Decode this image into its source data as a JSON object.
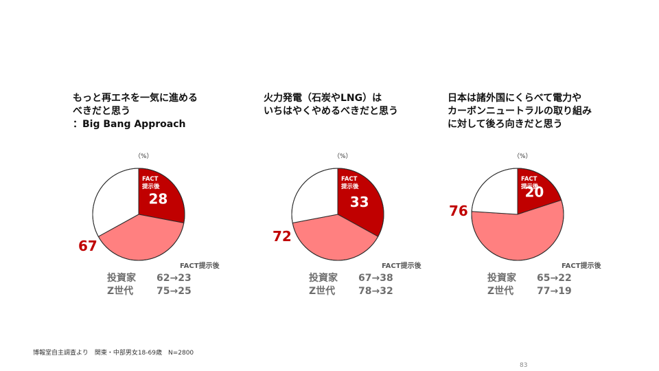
{
  "colors": {
    "fact": "#c00000",
    "other": "#ff8080",
    "rest": "#ffffff",
    "outline": "#2b2b2b",
    "accent_text": "#c00000",
    "muted_text": "#6e6e6e"
  },
  "chart_data": [
    {
      "type": "pie",
      "title": "もっと再エネを一気に進める\nべきだと思う\n：Big Bang Approach",
      "unit": "（%）",
      "slices": [
        {
          "label": "FACT\n提示後",
          "value": 28,
          "color": "#c00000"
        },
        {
          "label": "",
          "value": 39,
          "color": "#ff8080"
        },
        {
          "label": "",
          "value": 33,
          "color": "#ffffff"
        }
      ],
      "fact_value": "28",
      "fact_tag": [
        "FACT",
        "提示後"
      ],
      "outer_value": "67",
      "fact_header": "FACT提示後",
      "rows": [
        {
          "group": "投資家",
          "values": "62→23"
        },
        {
          "group": "Z世代",
          "values": "75→25"
        }
      ]
    },
    {
      "type": "pie",
      "title": "火力発電（石炭やLNG）は\nいちはやくやめるべきだと思う",
      "unit": "（%）",
      "slices": [
        {
          "label": "FACT\n提示後",
          "value": 33,
          "color": "#c00000"
        },
        {
          "label": "",
          "value": 39,
          "color": "#ff8080"
        },
        {
          "label": "",
          "value": 28,
          "color": "#ffffff"
        }
      ],
      "fact_value": "33",
      "fact_tag": [
        "FACT",
        "提示後"
      ],
      "outer_value": "72",
      "fact_header": "FACT提示後",
      "rows": [
        {
          "group": "投資家",
          "values": "67→38"
        },
        {
          "group": "Z世代",
          "values": "78→32"
        }
      ]
    },
    {
      "type": "pie",
      "title": "日本は諸外国にくらべて電力や\nカーボンニュートラルの取り組み\nに対して後ろ向きだと思う",
      "unit": "（%）",
      "slices": [
        {
          "label": "FACT\n提示後",
          "value": 20,
          "color": "#c00000"
        },
        {
          "label": "",
          "value": 56,
          "color": "#ff8080"
        },
        {
          "label": "",
          "value": 24,
          "color": "#ffffff"
        }
      ],
      "fact_value": "20",
      "fact_tag": [
        "FACT",
        "提示後"
      ],
      "outer_value": "76",
      "fact_header": "FACT提示後",
      "rows": [
        {
          "group": "投資家",
          "values": "65→22"
        },
        {
          "group": "Z世代",
          "values": "77→19"
        }
      ]
    }
  ],
  "footnote": "博報堂自主調査より　関東・中部男女18-69歳　N=2800",
  "page_number": "83"
}
